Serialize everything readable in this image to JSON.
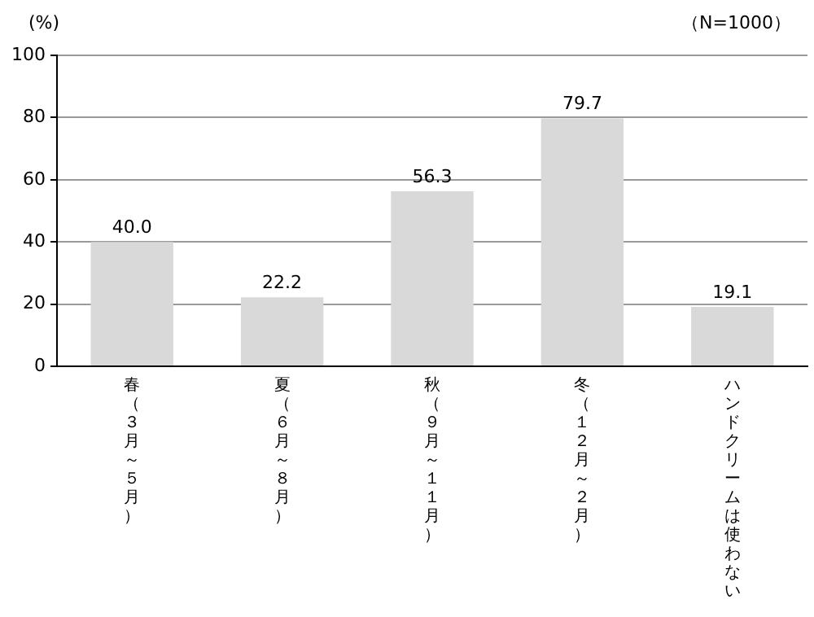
{
  "chart_data": {
    "type": "bar",
    "ylabel": "(%)",
    "annotations": [
      "（N=1000）"
    ],
    "categories": [
      "春（３月～５月）",
      "夏（６月～８月）",
      "秋（９月～１１月）",
      "冬（１２月～２月）",
      "ハンドクリームは使わない"
    ],
    "values": [
      40.0,
      22.2,
      56.3,
      79.7,
      19.1
    ],
    "value_labels": [
      "40.0",
      "22.2",
      "56.3",
      "79.7",
      "19.1"
    ],
    "color": "#d9d9d9",
    "ylim": [
      0,
      100
    ],
    "yticks": [
      0,
      20,
      40,
      60,
      80,
      100
    ],
    "grid": "y",
    "legend": false
  }
}
